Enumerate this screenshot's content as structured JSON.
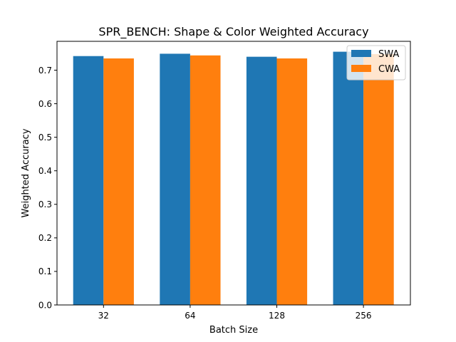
{
  "chart_data": {
    "type": "bar",
    "title": "SPR_BENCH: Shape & Color Weighted Accuracy",
    "xlabel": "Batch Size",
    "ylabel": "Weighted Accuracy",
    "categories": [
      "32",
      "64",
      "128",
      "256"
    ],
    "series": [
      {
        "name": "SWA",
        "color": "#1f77b4",
        "values": [
          0.742,
          0.749,
          0.74,
          0.755
        ]
      },
      {
        "name": "CWA",
        "color": "#ff7f0e",
        "values": [
          0.735,
          0.744,
          0.735,
          0.748
        ]
      }
    ],
    "ylim": [
      0,
      0.786
    ],
    "yticks": [
      "0.0",
      "0.1",
      "0.2",
      "0.3",
      "0.4",
      "0.5",
      "0.6",
      "0.7"
    ],
    "grid": false,
    "legend_position": "top-right"
  }
}
